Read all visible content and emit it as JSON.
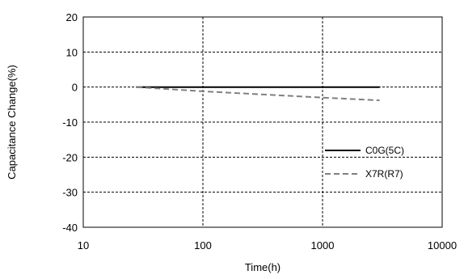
{
  "chart_data": {
    "type": "line",
    "title": "",
    "xlabel": "Time(h)",
    "ylabel": "Capacitance Change(%)",
    "x_scale": "log",
    "xlim": [
      10,
      10000
    ],
    "ylim": [
      -40,
      20
    ],
    "x_ticks": [
      10,
      100,
      1000,
      10000
    ],
    "x_tick_labels": [
      "10",
      "100",
      "1000",
      "10000"
    ],
    "y_ticks": [
      20,
      10,
      0,
      -10,
      -20,
      -30,
      -40
    ],
    "y_tick_labels": [
      "20",
      "10",
      "0",
      "-10",
      "-20",
      "-30",
      "-40"
    ],
    "grid": true,
    "legend_position": "right",
    "series": [
      {
        "name": "C0G(5C)",
        "style": "solid",
        "color": "#000000",
        "x": [
          28,
          3000
        ],
        "y": [
          0,
          0
        ]
      },
      {
        "name": "X7R(R7)",
        "style": "dashed",
        "color": "#808080",
        "x": [
          28,
          100,
          1000,
          3000
        ],
        "y": [
          0,
          -1.2,
          -3.0,
          -3.8
        ]
      }
    ]
  }
}
